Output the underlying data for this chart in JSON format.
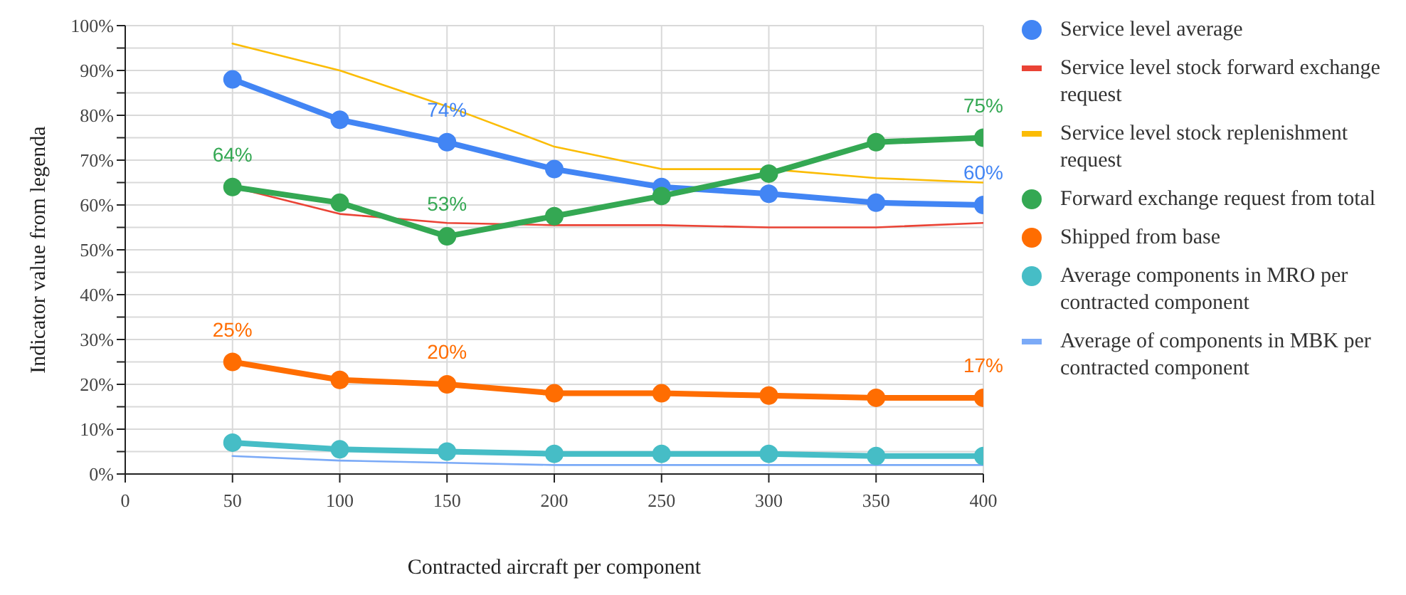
{
  "chart_data": {
    "type": "line",
    "xlabel": "Contracted aircraft per component",
    "ylabel": "Indicator value from legenda",
    "x": [
      50,
      100,
      150,
      200,
      250,
      300,
      350,
      400
    ],
    "xlim": [
      0,
      400
    ],
    "xticks": [
      0,
      50,
      100,
      150,
      200,
      250,
      300,
      350,
      400
    ],
    "ylim": [
      0,
      100
    ],
    "yticks": [
      {
        "value": 0,
        "label": "0%"
      },
      {
        "value": 5,
        "label": null
      },
      {
        "value": 10,
        "label": "10%"
      },
      {
        "value": 15,
        "label": null
      },
      {
        "value": 20,
        "label": "20%"
      },
      {
        "value": 25,
        "label": null
      },
      {
        "value": 30,
        "label": "30%"
      },
      {
        "value": 35,
        "label": null
      },
      {
        "value": 40,
        "label": "40%"
      },
      {
        "value": 45,
        "label": null
      },
      {
        "value": 50,
        "label": "50%"
      },
      {
        "value": 55,
        "label": null
      },
      {
        "value": 60,
        "label": "60%"
      },
      {
        "value": 65,
        "label": null
      },
      {
        "value": 70,
        "label": "70%"
      },
      {
        "value": 75,
        "label": null
      },
      {
        "value": 80,
        "label": "80%"
      },
      {
        "value": 85,
        "label": null
      },
      {
        "value": 90,
        "label": "90%"
      },
      {
        "value": 95,
        "label": null
      },
      {
        "value": 100,
        "label": "100%"
      }
    ],
    "grid": true,
    "legend": "right",
    "line_style": "solid",
    "series": [
      {
        "name": "Service level average",
        "color": "#4285f4",
        "marker": "circle",
        "values": [
          88,
          79,
          74,
          68,
          64,
          62.5,
          60.5,
          60
        ],
        "value_labels": [
          null,
          null,
          "74%",
          null,
          null,
          null,
          null,
          "60%"
        ]
      },
      {
        "name": "Service level stock forward exchange request",
        "color": "#ea4335",
        "marker": "none",
        "values": [
          64,
          58,
          56,
          55.5,
          55.5,
          55,
          55,
          56
        ]
      },
      {
        "name": "Service level stock replenishment request",
        "color": "#fbbc04",
        "marker": "none",
        "values": [
          96,
          90,
          82,
          73,
          68,
          68,
          66,
          65
        ]
      },
      {
        "name": "Forward exchange request from total",
        "color": "#34a853",
        "marker": "circle",
        "values": [
          64,
          60.5,
          53,
          57.5,
          62,
          67,
          74,
          75
        ],
        "value_labels": [
          "64%",
          null,
          "53%",
          null,
          null,
          null,
          null,
          "75%"
        ]
      },
      {
        "name": "Shipped from base",
        "color": "#ff6d01",
        "marker": "circle",
        "values": [
          25,
          21,
          20,
          18,
          18,
          17.5,
          17,
          17
        ],
        "value_labels": [
          "25%",
          null,
          "20%",
          null,
          null,
          null,
          null,
          "17%"
        ]
      },
      {
        "name": "Average components in MRO per contracted component",
        "color": "#46bdc6",
        "marker": "circle",
        "values": [
          7,
          5.5,
          5,
          4.5,
          4.5,
          4.5,
          4,
          4
        ]
      },
      {
        "name": "Average of components in MBK per contracted component",
        "color": "#7baaf7",
        "marker": "none",
        "values": [
          4,
          3,
          2.5,
          2,
          2,
          2,
          2,
          2
        ]
      }
    ]
  }
}
